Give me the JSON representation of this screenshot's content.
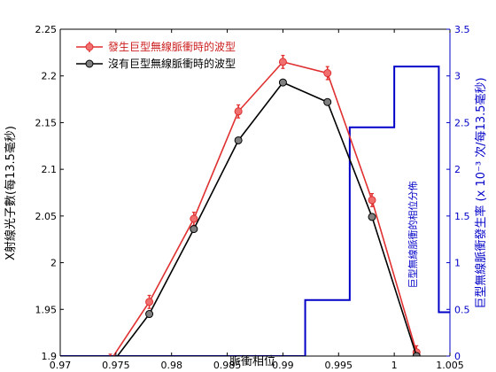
{
  "chart_data": {
    "type": "line",
    "xlabel": "脈衝相位",
    "ylabel_left": "X射線光子數(每13.5毫秒)",
    "ylabel_right": "巨型無線脈衝發生率 (x 10⁻³ 次/每13.5毫秒)",
    "xlim": [
      0.97,
      1.005
    ],
    "ylim_left": [
      1.9,
      2.25
    ],
    "ylim_right": [
      0,
      3.5
    ],
    "x_ticks": [
      "0.97",
      "0.975",
      "0.98",
      "0.985",
      "0.99",
      "0.995",
      "1",
      "1.005"
    ],
    "y_left_ticks": [
      "1.9",
      "1.95",
      "2",
      "2.05",
      "2.1",
      "2.15",
      "2.2",
      "2.25"
    ],
    "y_right_ticks": [
      "0",
      "0.5",
      "1",
      "1.5",
      "2",
      "2.5",
      "3",
      "3.5"
    ],
    "grid": false,
    "legend_position": "top-left",
    "annotation": "巨型無線脈衝的相位分佈",
    "series": [
      {
        "name": "發生巨型無線脈衝時的波型",
        "color": "#e03030",
        "axis": "left",
        "x": [
          0.9745,
          0.978,
          0.982,
          0.986,
          0.99,
          0.994,
          0.998,
          1.002
        ],
        "y": [
          1.895,
          1.958,
          2.047,
          2.162,
          2.215,
          2.203,
          2.067,
          1.904
        ],
        "err": [
          0.007,
          0.007,
          0.007,
          0.007,
          0.007,
          0.007,
          0.007,
          0.007
        ]
      },
      {
        "name": "沒有巨型無線脈衝時的波型",
        "color": "#000000",
        "axis": "left",
        "x": [
          0.9745,
          0.978,
          0.982,
          0.986,
          0.99,
          0.994,
          0.998,
          1.002
        ],
        "y": [
          1.89,
          1.945,
          2.036,
          2.131,
          2.193,
          2.172,
          2.049,
          1.9
        ]
      },
      {
        "name": "巨型無線脈衝的相位分佈",
        "color": "#0000c8",
        "axis": "right",
        "type": "step",
        "x": [
          0.97,
          0.99,
          0.992,
          0.996,
          1.0,
          1.004,
          1.005
        ],
        "y": [
          0,
          0,
          0.6,
          2.45,
          3.1,
          0.47,
          0.47
        ]
      }
    ]
  }
}
